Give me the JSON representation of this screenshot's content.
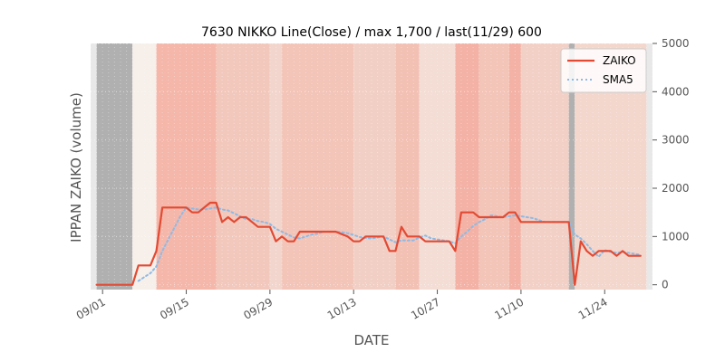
{
  "chart_data": {
    "type": "line",
    "title": "7630 NIKKO Line(Close) / max 1,700 / last(11/29) 600",
    "xlabel": "DATE",
    "ylabel": "IPPAN ZAIKO (volume)",
    "x_range": [
      "2020-08-30",
      "2020-12-02"
    ],
    "ylim": [
      -100,
      5000
    ],
    "yticks": [
      0,
      1000,
      2000,
      3000,
      4000,
      5000
    ],
    "y_axis_side": "right",
    "xticks": [
      {
        "date": "2020-09-01",
        "label": "09/01"
      },
      {
        "date": "2020-09-15",
        "label": "09/15"
      },
      {
        "date": "2020-09-29",
        "label": "09/29"
      },
      {
        "date": "2020-10-13",
        "label": "10/13"
      },
      {
        "date": "2020-10-27",
        "label": "10/27"
      },
      {
        "date": "2020-11-10",
        "label": "11/10"
      },
      {
        "date": "2020-11-24",
        "label": "11/24"
      }
    ],
    "legend_position": "top-right",
    "grid": true,
    "series": [
      {
        "name": "ZAIKO",
        "color": "#E24A33",
        "style": "solid",
        "points": [
          [
            "2020-08-31",
            0
          ],
          [
            "2020-09-01",
            0
          ],
          [
            "2020-09-02",
            0
          ],
          [
            "2020-09-03",
            0
          ],
          [
            "2020-09-04",
            0
          ],
          [
            "2020-09-05",
            0
          ],
          [
            "2020-09-06",
            0
          ],
          [
            "2020-09-07",
            400
          ],
          [
            "2020-09-08",
            400
          ],
          [
            "2020-09-09",
            400
          ],
          [
            "2020-09-10",
            700
          ],
          [
            "2020-09-11",
            1600
          ],
          [
            "2020-09-12",
            1600
          ],
          [
            "2020-09-13",
            1600
          ],
          [
            "2020-09-14",
            1600
          ],
          [
            "2020-09-15",
            1600
          ],
          [
            "2020-09-16",
            1500
          ],
          [
            "2020-09-17",
            1500
          ],
          [
            "2020-09-18",
            1600
          ],
          [
            "2020-09-19",
            1700
          ],
          [
            "2020-09-20",
            1700
          ],
          [
            "2020-09-21",
            1300
          ],
          [
            "2020-09-22",
            1400
          ],
          [
            "2020-09-23",
            1300
          ],
          [
            "2020-09-24",
            1400
          ],
          [
            "2020-09-25",
            1400
          ],
          [
            "2020-09-26",
            1300
          ],
          [
            "2020-09-27",
            1200
          ],
          [
            "2020-09-28",
            1200
          ],
          [
            "2020-09-29",
            1200
          ],
          [
            "2020-09-30",
            900
          ],
          [
            "2020-10-01",
            1000
          ],
          [
            "2020-10-02",
            900
          ],
          [
            "2020-10-03",
            900
          ],
          [
            "2020-10-04",
            1100
          ],
          [
            "2020-10-05",
            1100
          ],
          [
            "2020-10-06",
            1100
          ],
          [
            "2020-10-07",
            1100
          ],
          [
            "2020-10-08",
            1100
          ],
          [
            "2020-10-09",
            1100
          ],
          [
            "2020-10-10",
            1100
          ],
          [
            "2020-10-11",
            1050
          ],
          [
            "2020-10-12",
            1000
          ],
          [
            "2020-10-13",
            900
          ],
          [
            "2020-10-14",
            900
          ],
          [
            "2020-10-15",
            1000
          ],
          [
            "2020-10-16",
            1000
          ],
          [
            "2020-10-17",
            1000
          ],
          [
            "2020-10-18",
            1000
          ],
          [
            "2020-10-19",
            700
          ],
          [
            "2020-10-20",
            700
          ],
          [
            "2020-10-21",
            1200
          ],
          [
            "2020-10-22",
            1000
          ],
          [
            "2020-10-23",
            1000
          ],
          [
            "2020-10-24",
            1000
          ],
          [
            "2020-10-25",
            900
          ],
          [
            "2020-10-26",
            900
          ],
          [
            "2020-10-27",
            900
          ],
          [
            "2020-10-28",
            900
          ],
          [
            "2020-10-29",
            900
          ],
          [
            "2020-10-30",
            700
          ],
          [
            "2020-10-31",
            1500
          ],
          [
            "2020-11-01",
            1500
          ],
          [
            "2020-11-02",
            1500
          ],
          [
            "2020-11-03",
            1400
          ],
          [
            "2020-11-04",
            1400
          ],
          [
            "2020-11-05",
            1400
          ],
          [
            "2020-11-06",
            1400
          ],
          [
            "2020-11-07",
            1400
          ],
          [
            "2020-11-08",
            1500
          ],
          [
            "2020-11-09",
            1500
          ],
          [
            "2020-11-10",
            1300
          ],
          [
            "2020-11-11",
            1300
          ],
          [
            "2020-11-12",
            1300
          ],
          [
            "2020-11-13",
            1300
          ],
          [
            "2020-11-14",
            1300
          ],
          [
            "2020-11-15",
            1300
          ],
          [
            "2020-11-16",
            1300
          ],
          [
            "2020-11-17",
            1300
          ],
          [
            "2020-11-18",
            1300
          ],
          [
            "2020-11-19",
            0
          ],
          [
            "2020-11-20",
            900
          ],
          [
            "2020-11-21",
            700
          ],
          [
            "2020-11-22",
            600
          ],
          [
            "2020-11-23",
            700
          ],
          [
            "2020-11-24",
            700
          ],
          [
            "2020-11-25",
            700
          ],
          [
            "2020-11-26",
            600
          ],
          [
            "2020-11-27",
            700
          ],
          [
            "2020-11-28",
            600
          ],
          [
            "2020-11-29",
            600
          ],
          [
            "2020-11-30",
            600
          ]
        ]
      },
      {
        "name": "SMA5",
        "color": "#8EBAE5",
        "style": "dotted",
        "points": [
          [
            "2020-09-07",
            80
          ],
          [
            "2020-09-08",
            160
          ],
          [
            "2020-09-09",
            240
          ],
          [
            "2020-09-10",
            380
          ],
          [
            "2020-09-11",
            700
          ],
          [
            "2020-09-12",
            940
          ],
          [
            "2020-09-13",
            1180
          ],
          [
            "2020-09-14",
            1420
          ],
          [
            "2020-09-15",
            1600
          ],
          [
            "2020-09-16",
            1580
          ],
          [
            "2020-09-17",
            1560
          ],
          [
            "2020-09-18",
            1560
          ],
          [
            "2020-09-19",
            1580
          ],
          [
            "2020-09-20",
            1600
          ],
          [
            "2020-09-21",
            1560
          ],
          [
            "2020-09-22",
            1540
          ],
          [
            "2020-09-23",
            1480
          ],
          [
            "2020-09-24",
            1420
          ],
          [
            "2020-09-25",
            1360
          ],
          [
            "2020-09-26",
            1360
          ],
          [
            "2020-09-27",
            1320
          ],
          [
            "2020-09-28",
            1300
          ],
          [
            "2020-09-29",
            1260
          ],
          [
            "2020-09-30",
            1160
          ],
          [
            "2020-10-01",
            1100
          ],
          [
            "2020-10-02",
            1040
          ],
          [
            "2020-10-03",
            980
          ],
          [
            "2020-10-04",
            960
          ],
          [
            "2020-10-05",
            1000
          ],
          [
            "2020-10-06",
            1040
          ],
          [
            "2020-10-07",
            1060
          ],
          [
            "2020-10-08",
            1100
          ],
          [
            "2020-10-09",
            1100
          ],
          [
            "2020-10-10",
            1100
          ],
          [
            "2020-10-11",
            1090
          ],
          [
            "2020-10-12",
            1070
          ],
          [
            "2020-10-13",
            1030
          ],
          [
            "2020-10-14",
            990
          ],
          [
            "2020-10-15",
            970
          ],
          [
            "2020-10-16",
            960
          ],
          [
            "2020-10-17",
            980
          ],
          [
            "2020-10-18",
            1000
          ],
          [
            "2020-10-19",
            940
          ],
          [
            "2020-10-20",
            880
          ],
          [
            "2020-10-21",
            920
          ],
          [
            "2020-10-22",
            920
          ],
          [
            "2020-10-23",
            920
          ],
          [
            "2020-10-24",
            980
          ],
          [
            "2020-10-25",
            1020
          ],
          [
            "2020-10-26",
            960
          ],
          [
            "2020-10-27",
            940
          ],
          [
            "2020-10-28",
            920
          ],
          [
            "2020-10-29",
            900
          ],
          [
            "2020-10-30",
            860
          ],
          [
            "2020-10-31",
            1000
          ],
          [
            "2020-11-01",
            1100
          ],
          [
            "2020-11-02",
            1220
          ],
          [
            "2020-11-03",
            1300
          ],
          [
            "2020-11-04",
            1360
          ],
          [
            "2020-11-05",
            1440
          ],
          [
            "2020-11-06",
            1420
          ],
          [
            "2020-11-07",
            1400
          ],
          [
            "2020-11-08",
            1420
          ],
          [
            "2020-11-09",
            1440
          ],
          [
            "2020-11-10",
            1420
          ],
          [
            "2020-11-11",
            1400
          ],
          [
            "2020-11-12",
            1380
          ],
          [
            "2020-11-13",
            1340
          ],
          [
            "2020-11-14",
            1300
          ],
          [
            "2020-11-15",
            1300
          ],
          [
            "2020-11-16",
            1300
          ],
          [
            "2020-11-17",
            1300
          ],
          [
            "2020-11-18",
            1300
          ],
          [
            "2020-11-19",
            1040
          ],
          [
            "2020-11-20",
            960
          ],
          [
            "2020-11-21",
            840
          ],
          [
            "2020-11-22",
            700
          ],
          [
            "2020-11-23",
            580
          ],
          [
            "2020-11-24",
            720
          ],
          [
            "2020-11-25",
            680
          ],
          [
            "2020-11-26",
            660
          ],
          [
            "2020-11-27",
            680
          ],
          [
            "2020-11-28",
            660
          ],
          [
            "2020-11-29",
            640
          ],
          [
            "2020-11-30",
            620
          ]
        ]
      }
    ],
    "background_bands": {
      "dark_color": "#B0B0B0",
      "light_color": "#F4E6E0",
      "bands": [
        {
          "start": "2020-08-30",
          "end": "2020-08-31",
          "color": "#E8E8E8"
        },
        {
          "start": "2020-08-31",
          "end": "2020-09-06",
          "color": "#B0B0B0"
        },
        {
          "start": "2020-09-06",
          "end": "2020-09-10",
          "color": "#F6EFEA"
        },
        {
          "start": "2020-09-10",
          "end": "2020-09-20",
          "color": "#F4B7AA"
        },
        {
          "start": "2020-09-20",
          "end": "2020-09-29",
          "color": "#F3C8BC"
        },
        {
          "start": "2020-09-29",
          "end": "2020-10-01",
          "color": "#F2D6CD"
        },
        {
          "start": "2020-10-01",
          "end": "2020-10-13",
          "color": "#F3C4B8"
        },
        {
          "start": "2020-10-13",
          "end": "2020-10-20",
          "color": "#F2CFC5"
        },
        {
          "start": "2020-10-20",
          "end": "2020-10-24",
          "color": "#F3C0B4"
        },
        {
          "start": "2020-10-24",
          "end": "2020-10-30",
          "color": "#F3DDD5"
        },
        {
          "start": "2020-10-30",
          "end": "2020-11-03",
          "color": "#F3B2A5"
        },
        {
          "start": "2020-11-03",
          "end": "2020-11-08",
          "color": "#F3C4B8"
        },
        {
          "start": "2020-11-08",
          "end": "2020-11-10",
          "color": "#F3B2A5"
        },
        {
          "start": "2020-11-10",
          "end": "2020-11-18",
          "color": "#F3D0C6"
        },
        {
          "start": "2020-11-18",
          "end": "2020-11-19",
          "color": "#B0B0B0"
        },
        {
          "start": "2020-11-19",
          "end": "2020-12-01",
          "color": "#F3D6CC"
        },
        {
          "start": "2020-12-01",
          "end": "2020-12-02",
          "color": "#E8E8E8"
        }
      ]
    }
  }
}
